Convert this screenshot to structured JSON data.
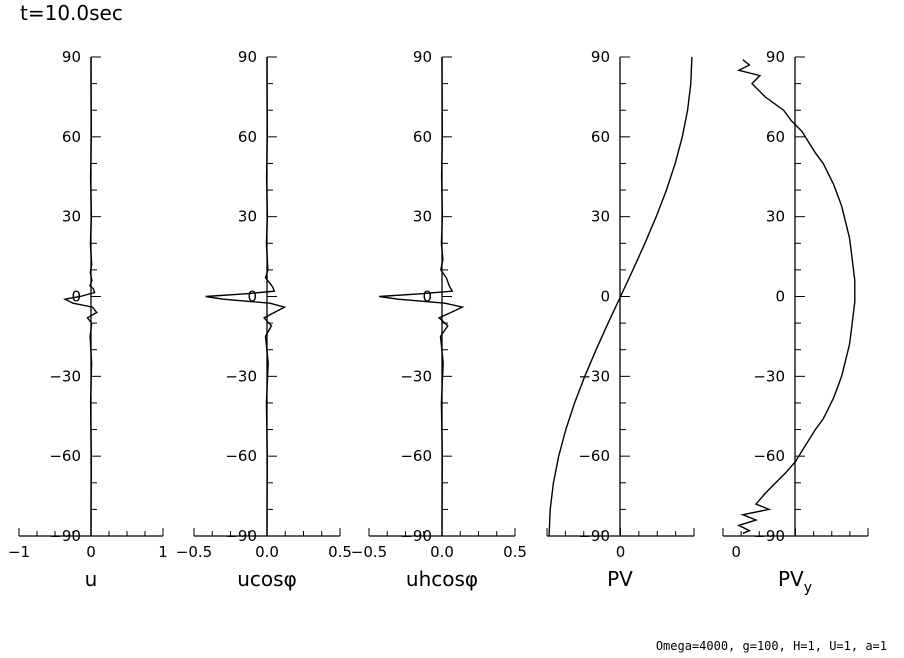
{
  "title": "t=10.0sec",
  "footer": "Omega=4000, g=100, H=1, U=1, a=1",
  "chart_data": [
    {
      "type": "line",
      "xlabel": "u",
      "xlim": [
        -1,
        1
      ],
      "xticks": [
        -1,
        0,
        1
      ],
      "xtick_labels": [
        "−1",
        "0",
        "1"
      ],
      "ylim": [
        -90,
        90
      ],
      "yticks": [
        90,
        60,
        30,
        0,
        -30,
        -60,
        -90
      ],
      "ytick_labels": [
        "90",
        "60",
        "30",
        "0",
        "−30",
        "−60",
        "−90"
      ],
      "series": [
        {
          "x": [
            0,
            0.004,
            -0.006,
            0.006,
            -0.008,
            0.01,
            -0.01,
            0.012,
            -0.015,
            0.03,
            0.05,
            -0.15,
            -0.36,
            -0.25,
            0.02,
            0.08,
            -0.05,
            0.01,
            -0.012,
            0.008,
            -0.006,
            0.004,
            0
          ],
          "y": [
            90,
            60,
            45,
            30,
            20,
            12,
            9,
            6,
            4,
            3,
            1.5,
            0,
            -1,
            -2.5,
            -4,
            -6,
            -8,
            -10,
            -15,
            -25,
            -40,
            -60,
            -90
          ]
        }
      ]
    },
    {
      "type": "line",
      "xlabel": "ucosφ",
      "xlim": [
        -0.5,
        0.5
      ],
      "xticks": [
        -0.5,
        0,
        0.5
      ],
      "xtick_labels": [
        "−0.5",
        "0.0",
        "0.5"
      ],
      "ylim": [
        -90,
        90
      ],
      "yticks": [
        90,
        60,
        30,
        0,
        -30,
        -60,
        -90
      ],
      "ytick_labels": [
        "90",
        "60",
        "30",
        "0",
        "−30",
        "−60",
        "−90"
      ],
      "series": [
        {
          "x": [
            0,
            0.002,
            -0.003,
            0.003,
            -0.004,
            0.006,
            -0.01,
            0.02,
            0.04,
            0.05,
            -0.15,
            -0.42,
            -0.3,
            0.02,
            0.12,
            0.05,
            -0.02,
            0.03,
            -0.01,
            0.008,
            -0.004,
            0.002,
            0
          ],
          "y": [
            90,
            60,
            45,
            30,
            20,
            10,
            7,
            5,
            3.5,
            2,
            1,
            0,
            -1,
            -2.5,
            -4,
            -6,
            -8,
            -11,
            -15,
            -25,
            -40,
            -60,
            -90
          ]
        }
      ]
    },
    {
      "type": "line",
      "xlabel": "uhcosφ",
      "xlim": [
        -0.5,
        0.5
      ],
      "xticks": [
        -0.5,
        0,
        0.5
      ],
      "xtick_labels": [
        "−0.5",
        "0.0",
        "0.5"
      ],
      "ylim": [
        -90,
        90
      ],
      "yticks": [
        90,
        60,
        30,
        0,
        -30,
        -60,
        -90
      ],
      "ytick_labels": [
        "90",
        "60",
        "30",
        "0",
        "−30",
        "−60",
        "−90"
      ],
      "series": [
        {
          "x": [
            0,
            0.002,
            -0.003,
            0.003,
            -0.004,
            0.006,
            -0.008,
            0.03,
            0.05,
            0.07,
            -0.15,
            -0.43,
            -0.3,
            0.02,
            0.14,
            0.06,
            -0.02,
            0.04,
            -0.01,
            0.008,
            -0.004,
            0.002,
            0
          ],
          "y": [
            90,
            60,
            45,
            30,
            20,
            14,
            10,
            7,
            4,
            2,
            1,
            0,
            -1,
            -2.5,
            -4,
            -6,
            -8,
            -11,
            -15,
            -25,
            -40,
            -60,
            -90
          ]
        }
      ]
    },
    {
      "type": "line",
      "xlabel": "PV",
      "xlim": [
        -1.03,
        1.03
      ],
      "xticks": [
        0
      ],
      "xtick_labels": [
        "0"
      ],
      "ylim": [
        -90,
        90
      ],
      "yticks": [
        90,
        60,
        30,
        0,
        -30,
        -60,
        -90
      ],
      "ytick_labels": [
        "90",
        "60",
        "30",
        "0",
        "−30",
        "−60",
        "−90"
      ],
      "series": [
        {
          "x": [
            -1,
            -0.985,
            -0.94,
            -0.866,
            -0.766,
            -0.643,
            -0.5,
            -0.342,
            -0.174,
            0,
            0.174,
            0.342,
            0.5,
            0.643,
            0.766,
            0.866,
            0.94,
            0.985,
            1
          ],
          "y": [
            -90,
            -80,
            -70,
            -60,
            -50,
            -40,
            -30,
            -20,
            -10,
            0,
            10,
            20,
            30,
            40,
            50,
            60,
            70,
            80,
            90
          ]
        }
      ]
    },
    {
      "type": "line",
      "xlabel": "PV",
      "xlabel_sub": "y",
      "xlim": [
        -0.1,
        1
      ],
      "xticks": [
        0
      ],
      "xtick_labels": [
        "0"
      ],
      "ylim": [
        -90,
        90
      ],
      "yticks": [
        90,
        60,
        30,
        0,
        -30,
        -60,
        -90
      ],
      "ytick_labels": [
        "90",
        "60",
        "30",
        "0",
        "−30",
        "−60",
        "−90"
      ],
      "series": [
        {
          "x": [
            0.05,
            0.1,
            0.02,
            0.18,
            0.12,
            0.22,
            0.36,
            0.42,
            0.5,
            0.55,
            0.6,
            0.66,
            0.7,
            0.74,
            0.77,
            0.8,
            0.82,
            0.84,
            0.86,
            0.87,
            0.88,
            0.89,
            0.9,
            0.9,
            0.9,
            0.89,
            0.88,
            0.87,
            0.86,
            0.84,
            0.82,
            0.8,
            0.77,
            0.74,
            0.7,
            0.66,
            0.6,
            0.55,
            0.5,
            0.45,
            0.38,
            0.3,
            0.22,
            0.15,
            0.25,
            0.05,
            0.15,
            0.02,
            0.1,
            0.05
          ],
          "y": [
            89,
            87,
            85,
            83,
            80,
            75,
            70,
            66,
            62,
            58,
            54,
            50,
            46,
            42,
            38,
            34,
            30,
            26,
            22,
            18,
            14,
            10,
            6,
            2,
            -2,
            -6,
            -10,
            -14,
            -18,
            -22,
            -26,
            -30,
            -34,
            -38,
            -42,
            -46,
            -50,
            -54,
            -58,
            -62,
            -66,
            -70,
            -74,
            -78,
            -80,
            -82,
            -84,
            -86,
            -88,
            -89
          ]
        }
      ]
    }
  ]
}
